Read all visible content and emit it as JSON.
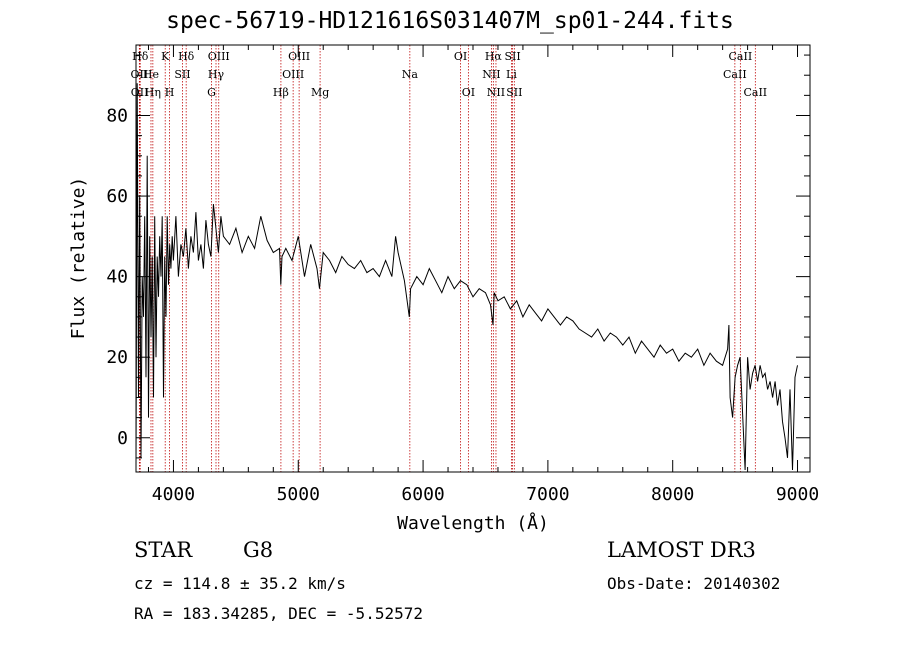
{
  "chart_data": {
    "type": "line",
    "title": "spec-56719-HD121616S031407M_sp01-244.fits",
    "xlabel": "Wavelength (Å)",
    "ylabel": "Flux (relative)",
    "xlim": [
      3700,
      9100
    ],
    "ylim": [
      -8.5,
      97.5
    ],
    "xticks": [
      4000,
      5000,
      6000,
      7000,
      8000,
      9000
    ],
    "yticks": [
      0,
      20,
      40,
      60,
      80
    ],
    "x_tick_labels": [
      "4000",
      "5000",
      "6000",
      "7000",
      "8000",
      "9000"
    ],
    "y_tick_labels": [
      "0",
      "20",
      "40",
      "60",
      "80"
    ],
    "series": [
      {
        "name": "flux",
        "x": [
          3700,
          3710,
          3720,
          3730,
          3740,
          3750,
          3760,
          3770,
          3780,
          3790,
          3800,
          3810,
          3820,
          3830,
          3840,
          3850,
          3860,
          3870,
          3880,
          3890,
          3900,
          3910,
          3920,
          3930,
          3940,
          3950,
          3960,
          3970,
          3980,
          3990,
          4000,
          4020,
          4040,
          4060,
          4080,
          4100,
          4120,
          4140,
          4160,
          4180,
          4200,
          4220,
          4240,
          4260,
          4280,
          4300,
          4320,
          4340,
          4360,
          4380,
          4400,
          4450,
          4500,
          4550,
          4600,
          4650,
          4700,
          4750,
          4800,
          4850,
          4860,
          4870,
          4900,
          4950,
          5000,
          5050,
          5100,
          5150,
          5170,
          5180,
          5200,
          5250,
          5300,
          5350,
          5400,
          5450,
          5500,
          5550,
          5600,
          5650,
          5700,
          5750,
          5780,
          5800,
          5850,
          5890,
          5900,
          5950,
          6000,
          6050,
          6100,
          6150,
          6200,
          6250,
          6300,
          6350,
          6400,
          6450,
          6500,
          6540,
          6560,
          6570,
          6600,
          6650,
          6700,
          6750,
          6800,
          6850,
          6900,
          6950,
          7000,
          7050,
          7100,
          7150,
          7200,
          7250,
          7300,
          7350,
          7400,
          7450,
          7500,
          7550,
          7600,
          7650,
          7700,
          7750,
          7800,
          7850,
          7900,
          7950,
          8000,
          8050,
          8100,
          8150,
          8200,
          8250,
          8300,
          8350,
          8400,
          8440,
          8450,
          8460,
          8480,
          8500,
          8520,
          8540,
          8560,
          8580,
          8600,
          8620,
          8640,
          8660,
          8680,
          8700,
          8720,
          8740,
          8760,
          8780,
          8800,
          8820,
          8840,
          8860,
          8880,
          8900,
          8920,
          8940,
          8960,
          8980,
          9000
        ],
        "y": [
          -8,
          88,
          10,
          60,
          -5,
          40,
          30,
          55,
          15,
          70,
          5,
          50,
          25,
          45,
          10,
          55,
          20,
          45,
          35,
          50,
          40,
          55,
          10,
          45,
          30,
          55,
          38,
          48,
          42,
          50,
          44,
          55,
          40,
          48,
          45,
          52,
          42,
          50,
          46,
          56,
          44,
          48,
          42,
          54,
          48,
          45,
          58,
          52,
          46,
          55,
          50,
          48,
          52,
          46,
          50,
          47,
          55,
          49,
          46,
          47,
          38,
          45,
          47,
          44,
          50,
          40,
          48,
          42,
          37,
          40,
          46,
          44,
          41,
          45,
          43,
          42,
          44,
          41,
          42,
          40,
          44,
          40,
          50,
          46,
          39,
          30,
          37,
          40,
          38,
          42,
          39,
          36,
          40,
          37,
          39,
          38,
          35,
          37,
          36,
          33,
          28,
          36,
          34,
          35,
          32,
          34,
          30,
          33,
          31,
          29,
          32,
          30,
          28,
          30,
          29,
          27,
          26,
          25,
          27,
          24,
          26,
          25,
          23,
          25,
          21,
          24,
          22,
          20,
          23,
          21,
          22,
          19,
          21,
          20,
          22,
          18,
          21,
          19,
          18,
          22,
          28,
          10,
          5,
          15,
          18,
          20,
          6,
          -8,
          20,
          12,
          16,
          18,
          14,
          18,
          15,
          16,
          12,
          14,
          10,
          14,
          8,
          12,
          4,
          0,
          -5,
          12,
          -8,
          15,
          18
        ]
      }
    ],
    "line_markers": [
      {
        "label": "Hδ",
        "x": 3734,
        "row": 0
      },
      {
        "label": "OII",
        "x": 3727,
        "row": 1
      },
      {
        "label": "OII",
        "x": 3729,
        "row": 2
      },
      {
        "label": "He",
        "x": 3820,
        "row": 1
      },
      {
        "label": "Hη",
        "x": 3835,
        "row": 2
      },
      {
        "label": "K",
        "x": 3934,
        "row": 0
      },
      {
        "label": "H",
        "x": 3969,
        "row": 2
      },
      {
        "label": "SII",
        "x": 4072,
        "row": 1
      },
      {
        "label": "Hδ",
        "x": 4102,
        "row": 0
      },
      {
        "label": "OIII",
        "x": 4363,
        "row": 0
      },
      {
        "label": "Hγ",
        "x": 4341,
        "row": 1
      },
      {
        "label": "G",
        "x": 4305,
        "row": 2
      },
      {
        "label": "Hβ",
        "x": 4861,
        "row": 2
      },
      {
        "label": "OIII",
        "x": 5007,
        "row": 0
      },
      {
        "label": "OIII",
        "x": 4959,
        "row": 1
      },
      {
        "label": "Mg",
        "x": 5175,
        "row": 2
      },
      {
        "label": "Na",
        "x": 5894,
        "row": 1
      },
      {
        "label": "OI",
        "x": 6300,
        "row": 0
      },
      {
        "label": "OI",
        "x": 6363,
        "row": 2
      },
      {
        "label": "Hα",
        "x": 6563,
        "row": 0
      },
      {
        "label": "NII",
        "x": 6548,
        "row": 1
      },
      {
        "label": "NII",
        "x": 6584,
        "row": 2
      },
      {
        "label": "SII",
        "x": 6717,
        "row": 0
      },
      {
        "label": "Li",
        "x": 6708,
        "row": 1
      },
      {
        "label": "SII",
        "x": 6731,
        "row": 2
      },
      {
        "label": "CaII",
        "x": 8542,
        "row": 0
      },
      {
        "label": "CaII",
        "x": 8498,
        "row": 1
      },
      {
        "label": "CaII",
        "x": 8662,
        "row": 2
      }
    ],
    "grid": false
  },
  "info": {
    "class": "STAR",
    "subclass": "G8",
    "survey": "LAMOST DR3",
    "cz": "cz = 114.8 ± 35.2 km/s",
    "obs_date": "Obs-Date: 20140302",
    "coords": "RA = 183.34285, DEC =  -5.52572"
  },
  "colors": {
    "spectrum": "#000000",
    "marker_line": "#c01010",
    "axes": "#000000"
  }
}
